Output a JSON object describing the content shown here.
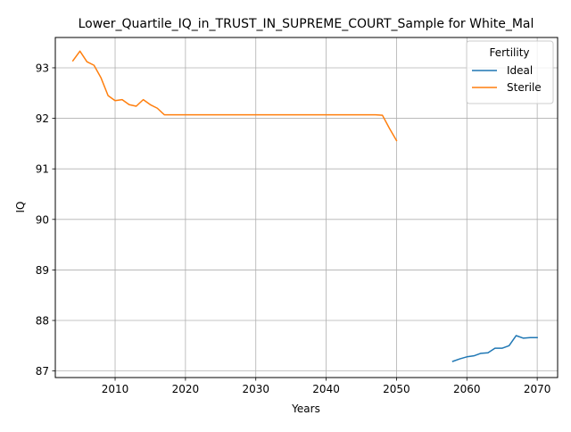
{
  "chart_data": {
    "type": "line",
    "title": "Lower_Quartile_IQ_in_TRUST_IN_SUPREME_COURT_Sample for White_Mal",
    "xlabel": "Years",
    "ylabel": "IQ",
    "xlim": [
      2001.5,
      2072.9
    ],
    "ylim": [
      86.87,
      93.6
    ],
    "xticks": [
      2010,
      2020,
      2030,
      2040,
      2050,
      2060,
      2070
    ],
    "yticks": [
      87,
      88,
      89,
      90,
      91,
      92,
      93
    ],
    "grid": true,
    "legend": {
      "title": "Fertility",
      "placement": "top-right"
    },
    "series": [
      {
        "name": "Ideal",
        "color": "#1f77b4",
        "x": [
          2058,
          2059,
          2060,
          2061,
          2062,
          2063,
          2064,
          2065,
          2066,
          2067,
          2068,
          2069,
          2070
        ],
        "values": [
          87.19,
          87.24,
          87.28,
          87.3,
          87.35,
          87.36,
          87.45,
          87.45,
          87.5,
          87.7,
          87.65,
          87.66,
          87.66
        ]
      },
      {
        "name": "Sterile",
        "color": "#ff7f0e",
        "x": [
          2004,
          2005,
          2006,
          2007,
          2008,
          2009,
          2010,
          2011,
          2012,
          2013,
          2014,
          2015,
          2016,
          2017,
          2018,
          2019,
          2020,
          2025,
          2030,
          2035,
          2040,
          2045,
          2047,
          2048,
          2049,
          2050
        ],
        "values": [
          93.14,
          93.33,
          93.12,
          93.05,
          92.8,
          92.45,
          92.35,
          92.37,
          92.27,
          92.24,
          92.37,
          92.27,
          92.2,
          92.07,
          92.07,
          92.07,
          92.07,
          92.07,
          92.07,
          92.07,
          92.07,
          92.07,
          92.07,
          92.06,
          91.8,
          91.56
        ]
      }
    ]
  }
}
